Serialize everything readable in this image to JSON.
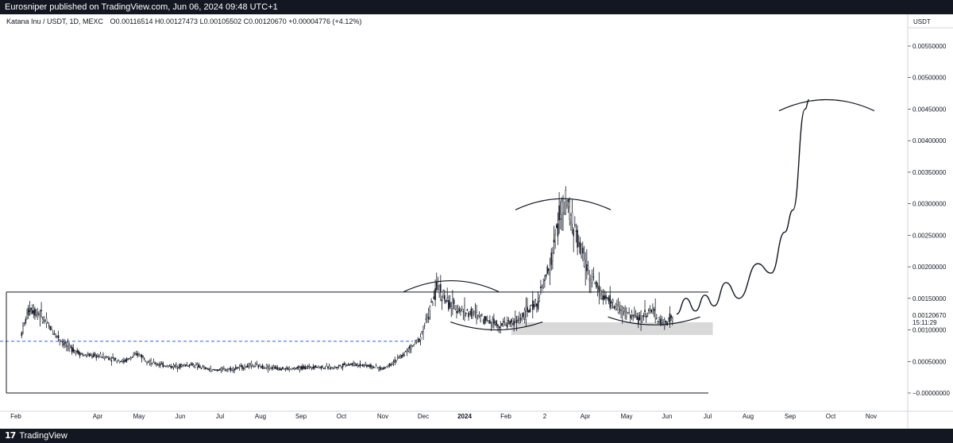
{
  "header": {
    "published_text": "Eurosniper published on TradingView.com, Jun 06, 2024 09:48 UTC+1"
  },
  "legend": {
    "symbol": "Katana Inu / USDT, 1D, MEXC",
    "open_label": "O",
    "open": "0.00116514",
    "high_label": "H",
    "high": "0.00127473",
    "low_label": "L",
    "low": "0.00105502",
    "close_label": "C",
    "close": "0.00120670",
    "change": "+0.00004776 (+4.12%)"
  },
  "price_axis": {
    "currency": "USDT",
    "ticks": [
      "0.00550000",
      "0.00500000",
      "0.00450000",
      "0.00400000",
      "0.00350000",
      "0.00300000",
      "0.00250000",
      "0.00200000",
      "0.00150000",
      "0.00100000",
      "0.00050000",
      "−0.00000000"
    ],
    "current_price": "0.00120670",
    "countdown": "15:11:29"
  },
  "time_axis": {
    "ticks": [
      "Feb",
      "Apr",
      "May",
      "Jun",
      "Jul",
      "Aug",
      "Sep",
      "Oct",
      "Nov",
      "Dec",
      "2024",
      "Feb",
      "2",
      "Apr",
      "May",
      "Jun",
      "Jul",
      "Aug",
      "Sep",
      "Oct",
      "Nov"
    ]
  },
  "footer": {
    "brand": "TradingView",
    "logo_mark": "17"
  },
  "colors": {
    "candle": "#131722",
    "dashed_support": "#2962ff",
    "zone_fill": "#d9d9d9",
    "top_bar": "#131722"
  },
  "chart_data": {
    "type": "candlestick",
    "title": "Katana Inu / USDT, 1D, MEXC",
    "xlabel": "",
    "ylabel": "",
    "ylim": [
      -0.0001,
      0.0058
    ],
    "price_format": "USDT",
    "series": [
      {
        "name": "price-path",
        "points": [
          [
            "2023-01-25",
            0.00095
          ],
          [
            "2023-02-01",
            0.00135
          ],
          [
            "2023-02-10",
            0.00125
          ],
          [
            "2023-02-20",
            0.001
          ],
          [
            "2023-03-05",
            0.00075
          ],
          [
            "2023-03-20",
            0.0006
          ],
          [
            "2023-04-05",
            0.00058
          ],
          [
            "2023-04-20",
            0.0005
          ],
          [
            "2023-05-01",
            0.00062
          ],
          [
            "2023-05-10",
            0.00048
          ],
          [
            "2023-05-25",
            0.00042
          ],
          [
            "2023-06-10",
            0.00045
          ],
          [
            "2023-06-25",
            0.00036
          ],
          [
            "2023-07-10",
            0.00038
          ],
          [
            "2023-07-25",
            0.00044
          ],
          [
            "2023-08-10",
            0.0004
          ],
          [
            "2023-08-25",
            0.00038
          ],
          [
            "2023-09-10",
            0.00042
          ],
          [
            "2023-09-25",
            0.0004
          ],
          [
            "2023-10-05",
            0.00046
          ],
          [
            "2023-10-20",
            0.00044
          ],
          [
            "2023-11-01",
            0.00038
          ],
          [
            "2023-11-15",
            0.00058
          ],
          [
            "2023-11-28",
            0.00085
          ],
          [
            "2023-12-05",
            0.00125
          ],
          [
            "2023-12-12",
            0.0017
          ],
          [
            "2023-12-20",
            0.0014
          ],
          [
            "2024-01-01",
            0.0013
          ],
          [
            "2024-01-15",
            0.0012
          ],
          [
            "2024-01-28",
            0.00108
          ],
          [
            "2024-02-10",
            0.00115
          ],
          [
            "2024-02-25",
            0.00145
          ],
          [
            "2024-03-05",
            0.002
          ],
          [
            "2024-03-12",
            0.0028
          ],
          [
            "2024-03-18",
            0.003
          ],
          [
            "2024-03-28",
            0.0023
          ],
          [
            "2024-04-05",
            0.00185
          ],
          [
            "2024-04-15",
            0.0015
          ],
          [
            "2024-04-28",
            0.0013
          ],
          [
            "2024-05-10",
            0.00118
          ],
          [
            "2024-05-20",
            0.00132
          ],
          [
            "2024-05-28",
            0.0011
          ],
          [
            "2024-06-06",
            0.00121
          ]
        ]
      },
      {
        "name": "projection",
        "points": [
          [
            "2024-06-08",
            0.00125
          ],
          [
            "2024-06-15",
            0.0015
          ],
          [
            "2024-06-22",
            0.0013
          ],
          [
            "2024-06-29",
            0.00155
          ],
          [
            "2024-07-06",
            0.00138
          ],
          [
            "2024-07-15",
            0.00175
          ],
          [
            "2024-07-25",
            0.0015
          ],
          [
            "2024-08-08",
            0.00205
          ],
          [
            "2024-08-18",
            0.0019
          ],
          [
            "2024-08-28",
            0.00255
          ],
          [
            "2024-09-03",
            0.0029
          ],
          [
            "2024-09-12",
            0.0045
          ],
          [
            "2024-09-15",
            0.00465
          ]
        ]
      }
    ],
    "horizontal_levels": [
      {
        "price": 0.0016,
        "style": "solid"
      },
      {
        "price": 0.00082,
        "style": "dashed"
      },
      {
        "price": 0.0,
        "style": "solid"
      }
    ],
    "zones": [
      {
        "from": "2024-02-05",
        "to": "2024-07-05",
        "low": 0.00092,
        "high": 0.00112
      }
    ],
    "arcs": [
      {
        "center": "2023-12-22",
        "price": 0.00178,
        "kind": "top"
      },
      {
        "center": "2024-03-15",
        "price": 0.00308,
        "kind": "top"
      },
      {
        "center": "2024-09-28",
        "price": 0.00465,
        "kind": "top"
      },
      {
        "center": "2024-01-25",
        "price": 0.001,
        "kind": "bottom"
      },
      {
        "center": "2024-05-22",
        "price": 0.00108,
        "kind": "bottom"
      }
    ]
  }
}
